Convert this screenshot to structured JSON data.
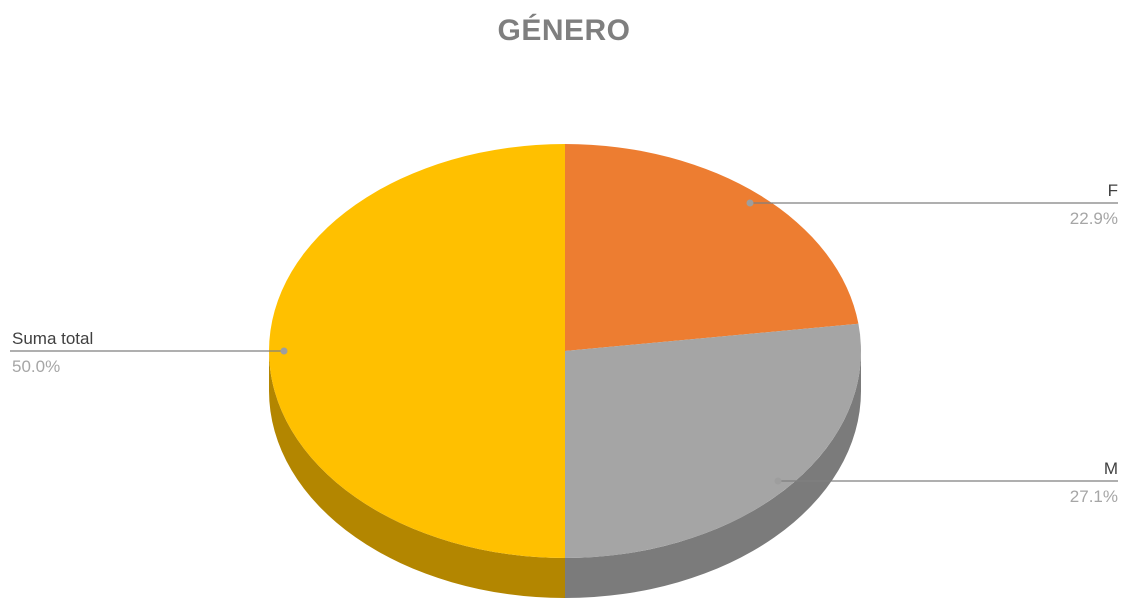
{
  "chart_data": {
    "type": "pie",
    "title": "GÉNERO",
    "slices": [
      {
        "name": "F",
        "value": 22.9,
        "label": "22.9%",
        "color": "#ED7D31",
        "side_color": "#B25E25"
      },
      {
        "name": "M",
        "value": 27.1,
        "label": "27.1%",
        "color": "#A5A5A5",
        "side_color": "#7B7B7B"
      },
      {
        "name": "Suma total",
        "value": 50.0,
        "label": "50.0%",
        "color": "#FFC000",
        "side_color": "#B38600"
      }
    ],
    "style": "3d",
    "legend": "none"
  }
}
